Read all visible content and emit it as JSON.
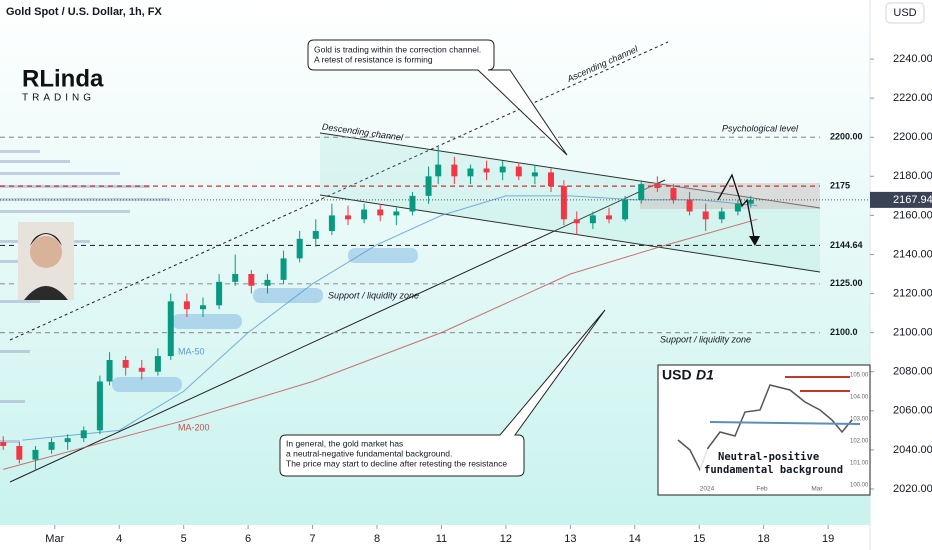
{
  "chart_data": {
    "type": "candlestick",
    "title": "Gold Spot / U.S. Dollar, 1h, FX",
    "currency_button": "USD",
    "logo": {
      "name": "RLinda",
      "sub": "TRADING"
    },
    "xlim": [
      -0.85,
      12.65
    ],
    "ylim": [
      2010,
      2260
    ],
    "xticks": [
      {
        "value": 0,
        "label": "Mar"
      },
      {
        "value": 1,
        "label": "4"
      },
      {
        "value": 2,
        "label": "5"
      },
      {
        "value": 3,
        "label": "6"
      },
      {
        "value": 4,
        "label": "7"
      },
      {
        "value": 5,
        "label": "8"
      },
      {
        "value": 6,
        "label": "11"
      },
      {
        "value": 7,
        "label": "12"
      },
      {
        "value": 8,
        "label": "13"
      },
      {
        "value": 9,
        "label": "14"
      },
      {
        "value": 10,
        "label": "15"
      },
      {
        "value": 11,
        "label": "18"
      },
      {
        "value": 12,
        "label": "19"
      }
    ],
    "yticks": [
      {
        "value": 2020,
        "label": "2020.00"
      },
      {
        "value": 2040,
        "label": "2040.00"
      },
      {
        "value": 2060,
        "label": "2060.00"
      },
      {
        "value": 2080,
        "label": "2080.00"
      },
      {
        "value": 2100,
        "label": "2100.00"
      },
      {
        "value": 2120,
        "label": "2120.00"
      },
      {
        "value": 2140,
        "label": "2140.00"
      },
      {
        "value": 2160,
        "label": "2160.00"
      },
      {
        "value": 2180,
        "label": "2180.00"
      },
      {
        "value": 2200,
        "label": "2200.00"
      },
      {
        "value": 2220,
        "label": "2220.00"
      },
      {
        "value": 2240,
        "label": "2240.00"
      }
    ],
    "up_color": "#089981",
    "down_color": "#f23645",
    "x": [
      -0.8,
      -0.55,
      -0.3,
      -0.05,
      0.2,
      0.45,
      0.7,
      0.85,
      1.1,
      1.35,
      1.6,
      1.8,
      2.05,
      2.3,
      2.55,
      2.8,
      3.05,
      3.3,
      3.55,
      3.8,
      4.05,
      4.3,
      4.55,
      4.8,
      5.05,
      5.3,
      5.55,
      5.8,
      5.95,
      6.2,
      6.45,
      6.7,
      6.95,
      7.2,
      7.45,
      7.7,
      7.9,
      8.1,
      8.35,
      8.6,
      8.85,
      9.1,
      9.35,
      9.6,
      9.85,
      10.1,
      10.35,
      10.6,
      10.8
    ],
    "open": [
      2044,
      2042,
      2035,
      2040,
      2044,
      2046,
      2050,
      2075,
      2086,
      2082,
      2080,
      2088,
      2116,
      2112,
      2114,
      2126,
      2130,
      2124,
      2127,
      2138,
      2148,
      2152,
      2160,
      2158,
      2163,
      2160,
      2162,
      2170,
      2180,
      2186,
      2180,
      2184,
      2182,
      2185,
      2180,
      2182,
      2175,
      2158,
      2156,
      2160,
      2158,
      2168,
      2176,
      2174,
      2168,
      2162,
      2158,
      2162,
      2166
    ],
    "high": [
      2047,
      2044,
      2042,
      2046,
      2048,
      2052,
      2078,
      2090,
      2088,
      2086,
      2092,
      2120,
      2120,
      2118,
      2130,
      2140,
      2132,
      2130,
      2142,
      2152,
      2158,
      2166,
      2165,
      2166,
      2166,
      2164,
      2172,
      2185,
      2195,
      2190,
      2186,
      2188,
      2188,
      2187,
      2186,
      2184,
      2178,
      2162,
      2162,
      2164,
      2170,
      2178,
      2180,
      2176,
      2172,
      2166,
      2164,
      2168,
      2170
    ],
    "low": [
      2040,
      2033,
      2030,
      2038,
      2040,
      2044,
      2048,
      2073,
      2078,
      2076,
      2078,
      2086,
      2108,
      2108,
      2112,
      2124,
      2120,
      2120,
      2125,
      2136,
      2144,
      2150,
      2155,
      2156,
      2157,
      2155,
      2160,
      2166,
      2176,
      2176,
      2176,
      2178,
      2178,
      2178,
      2176,
      2172,
      2155,
      2150,
      2153,
      2156,
      2157,
      2166,
      2172,
      2166,
      2160,
      2152,
      2156,
      2160,
      2164
    ],
    "close": [
      2042,
      2035,
      2040,
      2044,
      2046,
      2050,
      2075,
      2086,
      2082,
      2080,
      2088,
      2116,
      2112,
      2114,
      2126,
      2130,
      2124,
      2127,
      2138,
      2148,
      2152,
      2160,
      2158,
      2163,
      2160,
      2162,
      2170,
      2180,
      2186,
      2180,
      2184,
      2182,
      2185,
      2180,
      2182,
      2175,
      2158,
      2156,
      2160,
      2158,
      2168,
      2176,
      2174,
      2168,
      2162,
      2158,
      2162,
      2166,
      2167.94
    ],
    "last_price": 2167.94,
    "moving_averages": [
      {
        "name": "MA-50",
        "color": "#5b9bd5",
        "x": [
          -0.5,
          1,
          2,
          3,
          4,
          5,
          6,
          7,
          8,
          9,
          10,
          10.9
        ],
        "values": [
          2045,
          2050,
          2070,
          2100,
          2125,
          2145,
          2160,
          2170,
          2170,
          2168,
          2168,
          2165
        ]
      },
      {
        "name": "MA-200",
        "color": "#c0504d",
        "x": [
          -0.8,
          2,
          4,
          6,
          8,
          9.5,
          10.9
        ],
        "values": [
          2030,
          2055,
          2075,
          2100,
          2130,
          2145,
          2158
        ]
      }
    ],
    "levels": [
      {
        "value": 2200,
        "label": "2200.00",
        "color": "#999999"
      },
      {
        "value": 2175,
        "label": 2175,
        "color": "#d32f2f"
      },
      {
        "value": 2144.64,
        "label": 2144.64,
        "color": "#333333"
      },
      {
        "value": 2125,
        "label": "2125.00",
        "color": "#999999"
      },
      {
        "value": 2100,
        "label": "2100.0",
        "color": "#999999"
      }
    ],
    "annotations": {
      "callout_top": [
        "Gold is trading within the correction channel.",
        "A retest of resistance is forming"
      ],
      "callout_bottom": [
        "In general, the gold market has",
        "a neutral-negative fundamental background.",
        "The price may start to decline after retesting the resistance"
      ],
      "ascending_channel": "Ascending channel",
      "descending_channel": "Descending channel",
      "psychological_level": "Psychological level",
      "support_left": "Support / liquidity zone",
      "support_right": "Support / liquidity zone"
    },
    "inset": {
      "title": "USD",
      "timeframe": "D1",
      "note": [
        "Neutral-positive",
        "fundamental background"
      ],
      "yticks": [
        "105.00",
        "104.00",
        "103.00",
        "102.00",
        "101.00",
        "100.00"
      ],
      "xticks": [
        "2024",
        "Feb",
        "Mar"
      ]
    }
  }
}
